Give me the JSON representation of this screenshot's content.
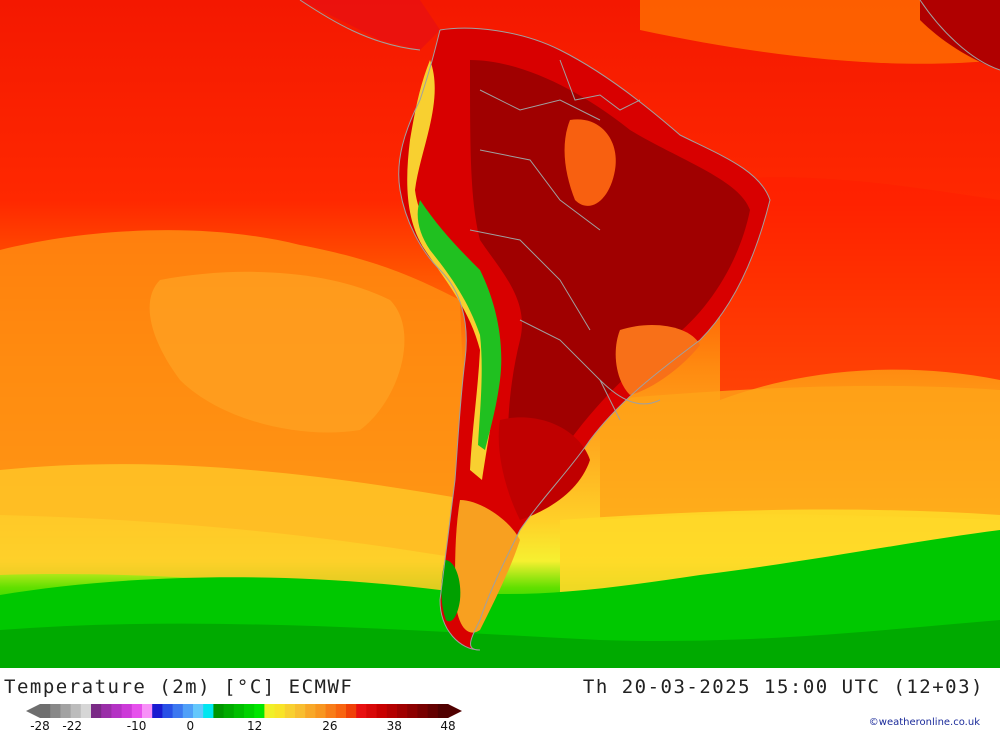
{
  "title": "Temperature (2m) [°C] ECMWF",
  "datetime": "Th 20-03-2025 15:00 UTC (12+03)",
  "credit": "©weatheronline.co.uk",
  "colorbar": {
    "colors": [
      "#6e6e6e",
      "#888888",
      "#a2a2a2",
      "#bcbcbc",
      "#d6d6d6",
      "#7a2a86",
      "#9a2ea8",
      "#b432c4",
      "#cc3ad8",
      "#e650ec",
      "#f890f8",
      "#1a1ad0",
      "#2850e6",
      "#3c78f0",
      "#50a0f8",
      "#64c8fc",
      "#00e6f0",
      "#009600",
      "#00aa00",
      "#00be00",
      "#00d200",
      "#00e600",
      "#f0f028",
      "#f8e428",
      "#f8d030",
      "#f8be30",
      "#f8a828",
      "#f89620",
      "#f87c18",
      "#f86410",
      "#f04008",
      "#e81010",
      "#d80808",
      "#c80000",
      "#b40000",
      "#a00000",
      "#8c0000",
      "#780000",
      "#640000",
      "#500000"
    ],
    "tick_labels": [
      "-28",
      "-22",
      "-10",
      "0",
      "12",
      "26",
      "38",
      "48"
    ],
    "tick_values": [
      -28,
      -22,
      -10,
      0,
      12,
      26,
      38,
      48
    ],
    "min": -28,
    "max": 48
  },
  "legend_colors": {
    "ocean_warm": "#ff2200",
    "ocean_mild": "#ff8c00",
    "ocean_cool": "#ffc000",
    "ocean_cold": "#ffe020",
    "southern_green": "#00cc00",
    "land_hot": "#d80000",
    "land_hottest": "#9a0000",
    "andes_cool": "#20c020",
    "boundaries": "#a0a0a0"
  }
}
